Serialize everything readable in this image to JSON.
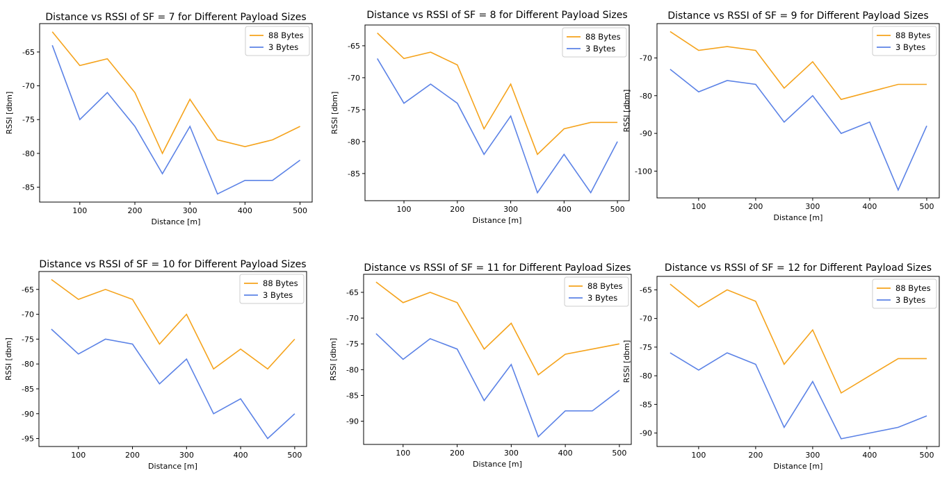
{
  "colors": {
    "series_88": "#f5a31c",
    "series_3": "#5b82e6"
  },
  "chart_data": [
    {
      "type": "line",
      "title": "Distance vs RSSI of SF = 7 for Different Payload Sizes",
      "xlabel": "Distance [m]",
      "ylabel": "RSSI [dbm]",
      "x": [
        50,
        100,
        150,
        200,
        250,
        300,
        350,
        400,
        450,
        500
      ],
      "xlim": [
        27,
        522
      ],
      "ylim": [
        -87.2,
        -60.8
      ],
      "xticks": [
        100,
        200,
        300,
        400,
        500
      ],
      "yticks": [
        -85,
        -80,
        -75,
        -70,
        -65
      ],
      "legend": "top-right",
      "grid": false,
      "series": [
        {
          "name": "88 Bytes",
          "values": [
            -62,
            -67,
            -66,
            -71,
            -80,
            -72,
            -78,
            -79,
            -78,
            -76
          ]
        },
        {
          "name": "3 Bytes",
          "values": [
            -64,
            -75,
            -71,
            -76,
            -83,
            -76,
            -86,
            -84,
            -84,
            -81
          ]
        }
      ]
    },
    {
      "type": "line",
      "title": "Distance vs RSSI of SF = 8 for Different Payload Sizes",
      "xlabel": "Distance [m]",
      "ylabel": "RSSI [dbm]",
      "x": [
        50,
        100,
        150,
        200,
        250,
        300,
        350,
        400,
        450,
        500
      ],
      "xlim": [
        27,
        522
      ],
      "ylim": [
        -89.25,
        -61.75
      ],
      "xticks": [
        100,
        200,
        300,
        400,
        500
      ],
      "yticks": [
        -85,
        -80,
        -75,
        -70,
        -65
      ],
      "legend": "top-right",
      "grid": false,
      "series": [
        {
          "name": "88 Bytes",
          "values": [
            -63,
            -67,
            -66,
            -68,
            -78,
            -71,
            -82,
            -78,
            -77,
            -77
          ]
        },
        {
          "name": "3 Bytes",
          "values": [
            -67,
            -74,
            -71,
            -74,
            -82,
            -76,
            -88,
            -82,
            -88,
            -80
          ]
        }
      ]
    },
    {
      "type": "line",
      "title": "Distance vs RSSI of SF = 9 for Different Payload Sizes",
      "xlabel": "Distance [m]",
      "ylabel": "RSSI [dbm]",
      "x": [
        50,
        100,
        150,
        200,
        250,
        300,
        350,
        400,
        450,
        500
      ],
      "xlim": [
        27,
        522
      ],
      "ylim": [
        -107.1,
        -60.9
      ],
      "xticks": [
        100,
        200,
        300,
        400,
        500
      ],
      "yticks": [
        -100,
        -90,
        -80,
        -70
      ],
      "legend": "top-right",
      "grid": false,
      "series": [
        {
          "name": "88 Bytes",
          "values": [
            -63,
            -68,
            -67,
            -68,
            -78,
            -71,
            -81,
            -79,
            -77,
            -77
          ]
        },
        {
          "name": "3 Bytes",
          "values": [
            -73,
            -79,
            -76,
            -77,
            -87,
            -80,
            -90,
            -87,
            -105,
            -88
          ]
        }
      ]
    },
    {
      "type": "line",
      "title": "Distance vs RSSI of SF = 10 for Different Payload Sizes",
      "xlabel": "Distance [m]",
      "ylabel": "RSSI [dbm]",
      "x": [
        50,
        100,
        150,
        200,
        250,
        300,
        350,
        400,
        450,
        500
      ],
      "xlim": [
        27,
        522
      ],
      "ylim": [
        -96.6,
        -61.4
      ],
      "xticks": [
        100,
        200,
        300,
        400,
        500
      ],
      "yticks": [
        -95,
        -90,
        -85,
        -80,
        -75,
        -70,
        -65
      ],
      "legend": "top-right",
      "grid": false,
      "series": [
        {
          "name": "88 Bytes",
          "values": [
            -63,
            -67,
            -65,
            -67,
            -76,
            -70,
            -81,
            -77,
            -81,
            -75
          ]
        },
        {
          "name": "3 Bytes",
          "values": [
            -73,
            -78,
            -75,
            -76,
            -84,
            -79,
            -90,
            -87,
            -95,
            -90
          ]
        }
      ]
    },
    {
      "type": "line",
      "title": "Distance vs RSSI of SF = 11 for Different Payload Sizes",
      "xlabel": "Distance [m]",
      "ylabel": "RSSI [dbm]",
      "x": [
        50,
        100,
        150,
        200,
        250,
        300,
        350,
        400,
        450,
        500
      ],
      "xlim": [
        27,
        522
      ],
      "ylim": [
        -94.5,
        -61.5
      ],
      "xticks": [
        100,
        200,
        300,
        400,
        500
      ],
      "yticks": [
        -90,
        -85,
        -80,
        -75,
        -70,
        -65
      ],
      "legend": "top-right",
      "grid": false,
      "series": [
        {
          "name": "88 Bytes",
          "values": [
            -63,
            -67,
            -65,
            -67,
            -76,
            -71,
            -81,
            -77,
            -76,
            -75
          ]
        },
        {
          "name": "3 Bytes",
          "values": [
            -73,
            -78,
            -74,
            -76,
            -86,
            -79,
            -93,
            -88,
            -88,
            -84
          ]
        }
      ]
    },
    {
      "type": "line",
      "title": "Distance vs RSSI of SF = 12 for Different Payload Sizes",
      "xlabel": "Distance [m]",
      "ylabel": "RSSI [dbm]",
      "x": [
        50,
        100,
        150,
        200,
        250,
        300,
        350,
        400,
        450,
        500
      ],
      "xlim": [
        27,
        522
      ],
      "ylim": [
        -92.35,
        -62.65
      ],
      "xticks": [
        100,
        200,
        300,
        400,
        500
      ],
      "yticks": [
        -90,
        -85,
        -80,
        -75,
        -70,
        -65
      ],
      "legend": "top-right",
      "grid": false,
      "series": [
        {
          "name": "88 Bytes",
          "values": [
            -64,
            -68,
            -65,
            -67,
            -78,
            -72,
            -83,
            -80,
            -77,
            -77
          ]
        },
        {
          "name": "3 Bytes",
          "values": [
            -76,
            -79,
            -76,
            -78,
            -89,
            -81,
            -91,
            -90,
            -89,
            -87
          ]
        }
      ]
    }
  ]
}
